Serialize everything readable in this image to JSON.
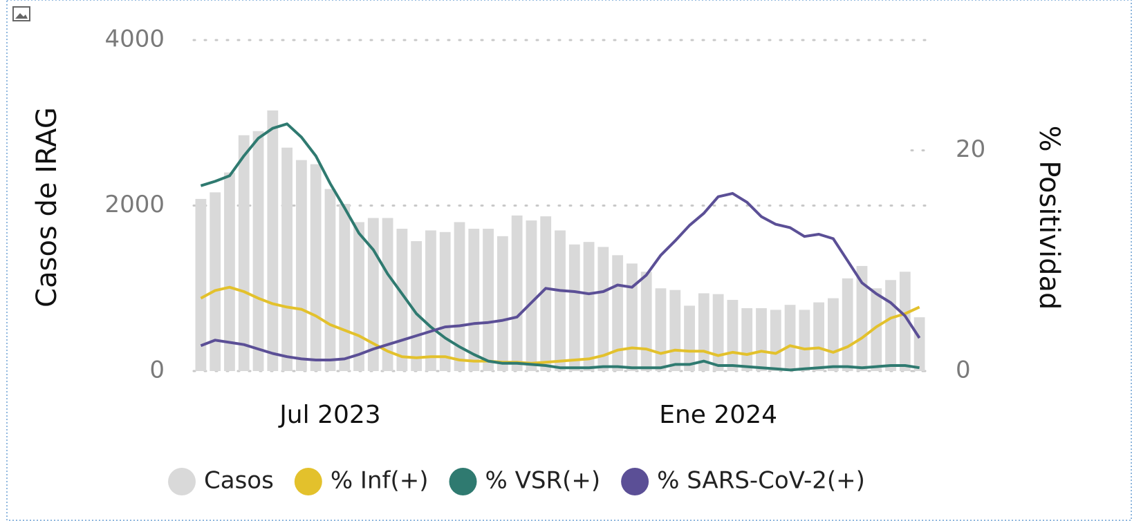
{
  "chart_data": {
    "type": "bar",
    "y_label": "Casos de IRAG",
    "y2_label": "% Positividad",
    "categories": [
      null,
      null,
      null,
      null,
      null,
      null,
      null,
      null,
      null,
      "Jul 2023",
      null,
      null,
      null,
      null,
      null,
      null,
      null,
      null,
      null,
      null,
      null,
      null,
      null,
      null,
      null,
      null,
      null,
      null,
      null,
      null,
      null,
      null,
      null,
      null,
      null,
      null,
      "Ene 2024",
      null,
      null,
      null,
      null,
      null,
      null,
      null,
      null,
      null,
      null,
      null,
      null,
      null,
      null
    ],
    "series": [
      {
        "name": "Casos",
        "type": "bar",
        "color": "#d9d9d9",
        "values": [
          2080,
          2160,
          2400,
          2850,
          2900,
          3150,
          2700,
          2550,
          2500,
          2200,
          2020,
          1800,
          1850,
          1850,
          1720,
          1570,
          1700,
          1680,
          1800,
          1720,
          1720,
          1630,
          1880,
          1820,
          1870,
          1700,
          1530,
          1560,
          1500,
          1400,
          1300,
          1200,
          1000,
          980,
          790,
          940,
          930,
          860,
          760,
          760,
          740,
          800,
          740,
          830,
          880,
          1120,
          1270,
          1000,
          1100,
          1200,
          650
        ]
      },
      {
        "name": "% Inf(+)",
        "type": "line",
        "axis": "y2",
        "color": "#e3c12c",
        "values": [
          6.6,
          7.3,
          7.6,
          7.2,
          6.6,
          6.1,
          5.8,
          5.6,
          5.0,
          4.2,
          3.7,
          3.2,
          2.5,
          1.8,
          1.3,
          1.2,
          1.3,
          1.3,
          1.0,
          0.9,
          0.9,
          0.8,
          0.8,
          0.7,
          0.8,
          0.9,
          1.0,
          1.1,
          1.4,
          1.9,
          2.1,
          2.0,
          1.6,
          1.9,
          1.8,
          1.8,
          1.4,
          1.7,
          1.5,
          1.8,
          1.6,
          2.3,
          2.0,
          2.1,
          1.7,
          2.2,
          3.0,
          4.0,
          4.8,
          5.2,
          5.8
        ]
      },
      {
        "name": "% VSR(+)",
        "type": "line",
        "axis": "y2",
        "color": "#2f7a70",
        "values": [
          16.8,
          17.2,
          17.7,
          19.5,
          21.1,
          22.0,
          22.4,
          21.2,
          19.5,
          17.0,
          14.8,
          12.5,
          11.0,
          8.8,
          7.0,
          5.2,
          4.0,
          3.0,
          2.2,
          1.5,
          0.9,
          0.7,
          0.7,
          0.6,
          0.5,
          0.3,
          0.3,
          0.3,
          0.4,
          0.4,
          0.3,
          0.3,
          0.3,
          0.6,
          0.6,
          0.9,
          0.5,
          0.5,
          0.4,
          0.3,
          0.2,
          0.1,
          0.2,
          0.3,
          0.4,
          0.4,
          0.3,
          0.4,
          0.5,
          0.5,
          0.3
        ]
      },
      {
        "name": "% SARS-CoV-2(+)",
        "type": "line",
        "axis": "y2",
        "color": "#5b4f96",
        "values": [
          2.3,
          2.8,
          2.6,
          2.4,
          2.0,
          1.6,
          1.3,
          1.1,
          1.0,
          1.0,
          1.1,
          1.5,
          2.0,
          2.4,
          2.8,
          3.2,
          3.6,
          4.0,
          4.1,
          4.3,
          4.4,
          4.6,
          4.9,
          6.2,
          7.5,
          7.3,
          7.2,
          7.0,
          7.2,
          7.8,
          7.6,
          8.7,
          10.5,
          11.8,
          13.2,
          14.3,
          15.8,
          16.1,
          15.3,
          14.0,
          13.3,
          13.0,
          12.2,
          12.4,
          12.0,
          10.0,
          8.0,
          7.0,
          6.2,
          5.0,
          3.0
        ]
      }
    ],
    "ylim": [
      0,
      4000
    ],
    "yticks": [
      0,
      2000,
      4000
    ],
    "y2lim": [
      0,
      30
    ],
    "y2ticks": [
      0,
      20
    ],
    "grid": true,
    "legend": "bottom"
  }
}
